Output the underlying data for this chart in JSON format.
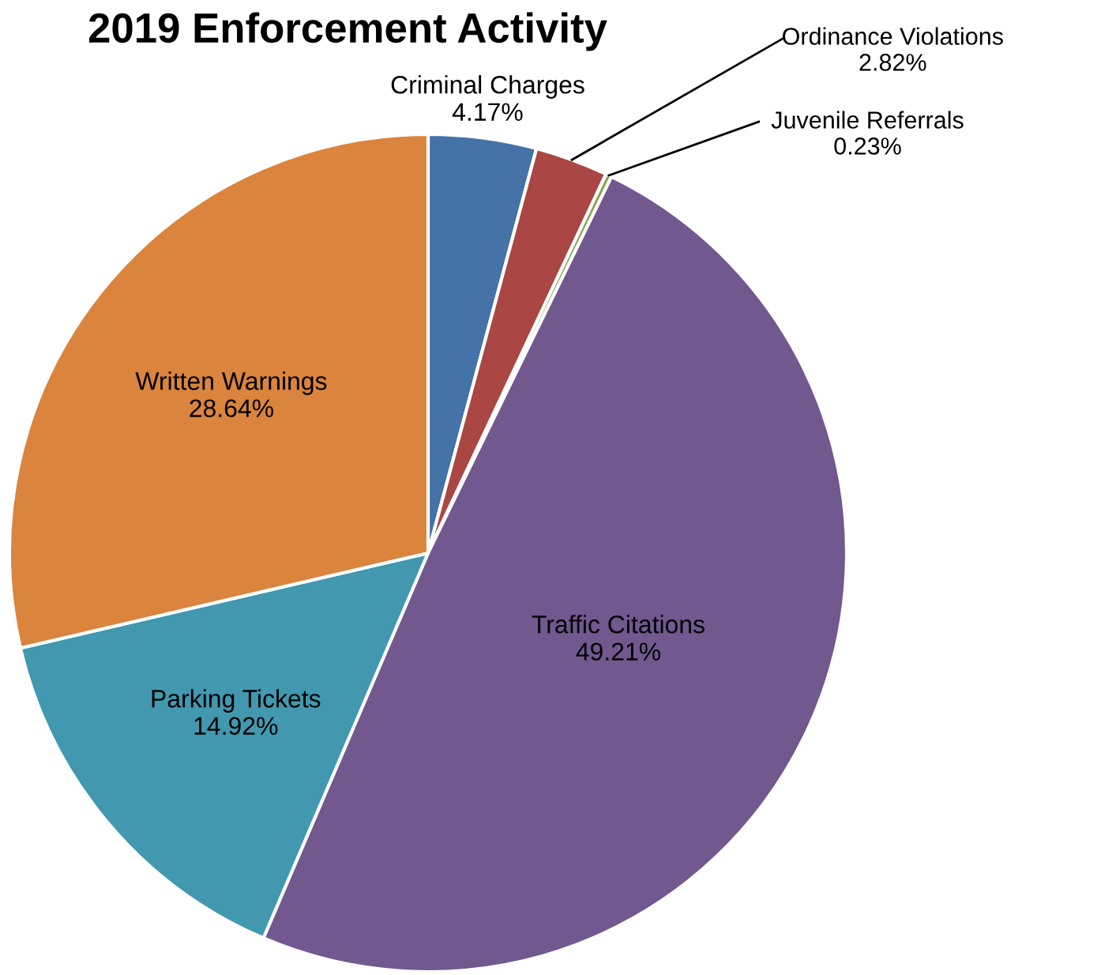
{
  "chart_data": {
    "type": "pie",
    "title": "2019 Enforcement Activity",
    "categories": [
      "Criminal Charges",
      "Ordinance Violations",
      "Juvenile Referrals",
      "Traffic Citations",
      "Parking Tickets",
      "Written Warnings"
    ],
    "values": [
      4.17,
      2.82,
      0.23,
      49.21,
      14.92,
      28.64
    ],
    "value_labels": [
      "4.17%",
      "2.82%",
      "0.23%",
      "49.21%",
      "14.92%",
      "28.64%"
    ],
    "colors": [
      "#4572a7",
      "#aa4643",
      "#89a54e",
      "#71588f",
      "#4198af",
      "#db843d"
    ],
    "legend": false
  }
}
